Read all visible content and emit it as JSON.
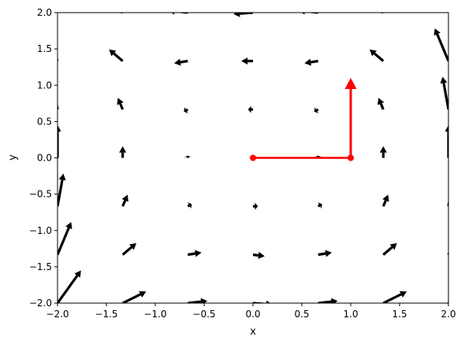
{
  "chart_data": {
    "type": "quiver",
    "xlabel": "x",
    "ylabel": "y",
    "xlim": [
      -2,
      2
    ],
    "ylim": [
      -2,
      2
    ],
    "xticks": [
      "−2.0",
      "−1.5",
      "−1.0",
      "−0.5",
      "0.0",
      "0.5",
      "1.0",
      "1.5",
      "2.0"
    ],
    "yticks": [
      "−2.0",
      "−1.5",
      "−1.0",
      "−0.5",
      "0.0",
      "0.5",
      "1.0",
      "1.5",
      "2.0"
    ],
    "grid": false,
    "vector_field": {
      "color": "#000000",
      "x_grid": [
        -2.0,
        -1.3333,
        -0.6667,
        0.0,
        0.6667,
        1.3333,
        2.0
      ],
      "y_grid": [
        -2.0,
        -1.3333,
        -0.6667,
        0.0,
        0.6667,
        1.3333,
        2.0
      ],
      "note_vectors": "u,v in data units per grid row (bottom to top)",
      "u": [
        [
          0.24,
          0.24,
          0.2,
          0.2,
          0.2,
          0.24,
          0.24
        ],
        [
          0.14,
          0.14,
          0.14,
          0.12,
          0.14,
          0.14,
          0.14
        ],
        [
          0.06,
          0.05,
          0.04,
          0.05,
          0.04,
          0.05,
          0.06
        ],
        [
          0.0,
          0.0,
          0.0,
          0.0,
          0.0,
          0.0,
          0.0
        ],
        [
          -0.06,
          -0.05,
          -0.04,
          -0.05,
          -0.04,
          -0.05,
          -0.06
        ],
        [
          -0.14,
          -0.14,
          -0.14,
          -0.12,
          -0.14,
          -0.14,
          -0.14
        ],
        [
          -0.24,
          -0.24,
          -0.2,
          -0.2,
          -0.2,
          -0.24,
          -0.24
        ]
      ],
      "v": [
        [
          0.45,
          0.16,
          0.03,
          -0.02,
          0.03,
          0.16,
          0.45
        ],
        [
          0.45,
          0.16,
          0.03,
          -0.02,
          0.03,
          0.16,
          0.45
        ],
        [
          0.45,
          0.16,
          0.03,
          0.0,
          0.03,
          0.16,
          0.45
        ],
        [
          0.45,
          0.16,
          0.03,
          0.0,
          0.03,
          0.16,
          0.45
        ],
        [
          0.45,
          0.16,
          -0.03,
          0.0,
          -0.03,
          0.16,
          0.45
        ],
        [
          0.45,
          0.16,
          -0.03,
          0.0,
          -0.03,
          0.16,
          0.45
        ],
        [
          0.45,
          0.16,
          0.03,
          -0.02,
          0.03,
          0.16,
          0.45
        ]
      ]
    },
    "overlay": {
      "color": "#ff0000",
      "points": [
        [
          0,
          0
        ],
        [
          1,
          0
        ]
      ],
      "arrow": {
        "from": [
          1,
          0
        ],
        "to": [
          1,
          1.1
        ]
      }
    }
  }
}
